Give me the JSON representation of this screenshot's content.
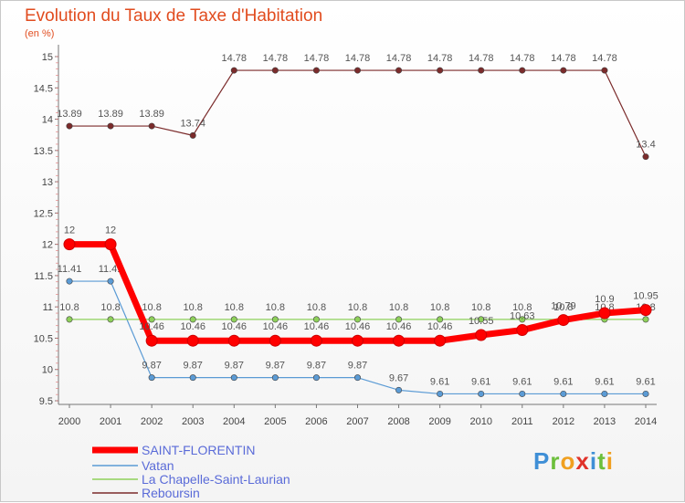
{
  "title": "Evolution du Taux de Taxe d'Habitation",
  "unit": "(en %)",
  "logo_text": "Proxiti",
  "chart_data": {
    "type": "line",
    "x": [
      "2000",
      "2001",
      "2002",
      "2003",
      "2004",
      "2005",
      "2006",
      "2007",
      "2008",
      "2009",
      "2010",
      "2011",
      "2012",
      "2013",
      "2014"
    ],
    "ylim": [
      9.5,
      15
    ],
    "yticks": [
      9.5,
      10,
      10.5,
      11,
      11.5,
      12,
      12.5,
      13,
      13.5,
      14,
      14.5,
      15
    ],
    "grid": false,
    "legend_position": "bottom-left",
    "series": [
      {
        "name": "SAINT-FLORENTIN",
        "color": "#ff0000",
        "values": [
          12,
          12,
          10.46,
          10.46,
          10.46,
          10.46,
          10.46,
          10.46,
          10.46,
          10.46,
          10.55,
          10.63,
          10.79,
          10.9,
          10.95
        ],
        "labels": [
          "12",
          "12",
          "10.46",
          "10.46",
          "10.46",
          "10.46",
          "10.46",
          "10.46",
          "10.46",
          "10.46",
          "10.55",
          "10.63",
          "10.79",
          "10.9",
          "10.95"
        ]
      },
      {
        "name": "Vatan",
        "color": "#5b9bd5",
        "values": [
          11.41,
          11.41,
          9.87,
          9.87,
          9.87,
          9.87,
          9.87,
          9.87,
          9.67,
          9.61,
          9.61,
          9.61,
          9.61,
          9.61,
          9.61
        ],
        "labels": [
          "11.41",
          "11.41",
          "9.87",
          "9.87",
          "9.87",
          "9.87",
          "9.87",
          "9.87",
          "9.67",
          "9.61",
          "9.61",
          "9.61",
          "9.61",
          "9.61",
          "9.61"
        ]
      },
      {
        "name": "La Chapelle-Saint-Laurian",
        "color": "#8ed05a",
        "values": [
          10.8,
          10.8,
          10.8,
          10.8,
          10.8,
          10.8,
          10.8,
          10.8,
          10.8,
          10.8,
          10.8,
          10.8,
          10.8,
          10.8,
          10.8
        ],
        "labels": [
          "10.8",
          "10.8",
          "10.8",
          "10.8",
          "10.8",
          "10.8",
          "10.8",
          "10.8",
          "10.8",
          "10.8",
          "10.8",
          "10.8",
          "10.8",
          "10.8",
          "10.8"
        ]
      },
      {
        "name": "Reboursin",
        "color": "#7b2b2b",
        "values": [
          13.89,
          13.89,
          13.89,
          13.74,
          14.78,
          14.78,
          14.78,
          14.78,
          14.78,
          14.78,
          14.78,
          14.78,
          14.78,
          14.78,
          13.4
        ],
        "labels": [
          "13.89",
          "13.89",
          "13.89",
          "13.74",
          "14.78",
          "14.78",
          "14.78",
          "14.78",
          "14.78",
          "14.78",
          "14.78",
          "14.78",
          "14.78",
          "14.78",
          "13.4"
        ]
      }
    ]
  }
}
